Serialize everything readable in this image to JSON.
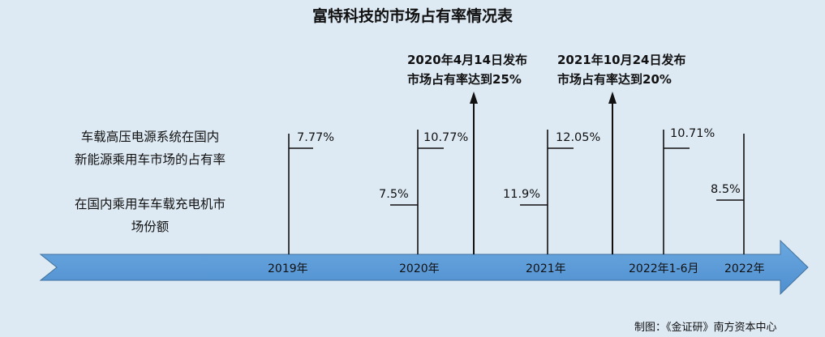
{
  "title": "富特科技的市场占有率情况表",
  "legend": {
    "series_a": [
      "车载高压电源系统在国内",
      "新能源乘用车市场的占有率"
    ],
    "series_b": [
      "在国内乘用车车载充电机市",
      "场份额"
    ]
  },
  "timeline": [
    {
      "year": "2019年",
      "upper": "7.77%",
      "lower": ""
    },
    {
      "year": "2020年",
      "upper": "10.77%",
      "lower": "7.5%"
    },
    {
      "year": "2021年",
      "upper": "12.05%",
      "lower": "11.9%"
    },
    {
      "year": "2022年1-6月",
      "upper": "10.71%",
      "lower": ""
    },
    {
      "year": "2022年",
      "upper": "",
      "lower": "8.5%"
    }
  ],
  "events": [
    {
      "line1": "2020年4月14日发布",
      "line2": "市场占有率达到25%"
    },
    {
      "line1": "2021年10月24日发布",
      "line2": "市场占有率达到20%"
    }
  ],
  "credit": "制图：《金证研》南方资本中心",
  "colors": {
    "background": "#dde9f3",
    "arrow": "#5b9bd5",
    "arrow_edge": "#41719c",
    "line": "#111111"
  }
}
